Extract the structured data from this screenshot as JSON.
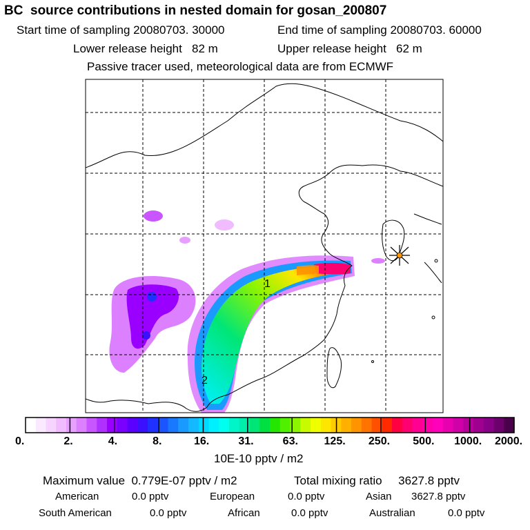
{
  "header": {
    "title": "BC  source contributions in nested domain for gosan_200807",
    "start_label": "Start time of sampling 20080703. 30000",
    "end_label": "End time of sampling 20080703. 60000",
    "lower_label": "Lower release height   82 m",
    "upper_label": "Upper release height   62 m",
    "tracer_note": "Passive tracer used, meteorological data are from ECMWF"
  },
  "chart_data": {
    "type": "heatmap",
    "title": "BC  source contributions in nested domain for gosan_200807",
    "unit_label": "10E-10 pptv / m2",
    "colorbar_ticks": [
      "0.",
      "2.",
      "4.",
      "8.",
      "16.",
      "31.",
      "63.",
      "125.",
      "250.",
      "500.",
      "1000.",
      "2000."
    ],
    "colorbar_colors": [
      "#ffffff",
      "#fbe9ff",
      "#f7d4ff",
      "#f0bbff",
      "#e7a0ff",
      "#dd80ff",
      "#c855ff",
      "#b030ff",
      "#9a00ff",
      "#7a00ff",
      "#5a00ff",
      "#3a10ff",
      "#2030ff",
      "#1a55ff",
      "#1a78ff",
      "#1a9aff",
      "#14b8ff",
      "#00d8ff",
      "#00f0ff",
      "#00ffee",
      "#00f5c8",
      "#00eeaa",
      "#00e676",
      "#00e040",
      "#24e600",
      "#50f000",
      "#8cf500",
      "#c8fa00",
      "#f0ff00",
      "#ffe600",
      "#ffcc00",
      "#ffb000",
      "#ff9400",
      "#ff7400",
      "#ff5000",
      "#ff2a00",
      "#ff0040",
      "#ff0070",
      "#ff0090",
      "#ff00aa",
      "#ff00bb",
      "#e800b0",
      "#d000a8",
      "#b8009c",
      "#a00090",
      "#880088",
      "#6e006e",
      "#4a004a"
    ],
    "grid": true,
    "markers": [
      {
        "label": "1",
        "type": "source_label"
      },
      {
        "label": "2",
        "type": "source_label"
      },
      {
        "label": "receptor",
        "type": "star"
      }
    ]
  },
  "footer": {
    "max_value_label": "Maximum value  0.779E-07 pptv / m2",
    "total_mixing_label": "Total mixing ratio     3627.8 pptv",
    "american_label": "American",
    "american_value": "0.0 pptv",
    "european_label": "European",
    "european_value": "0.0 pptv",
    "asian_label": "Asian",
    "asian_value": "3627.8 pptv",
    "south_american_label": "South American",
    "south_american_value": "0.0 pptv",
    "african_label": "African",
    "african_value": "0.0 pptv",
    "australian_label": "Australian",
    "australian_value": "0.0 pptv"
  }
}
